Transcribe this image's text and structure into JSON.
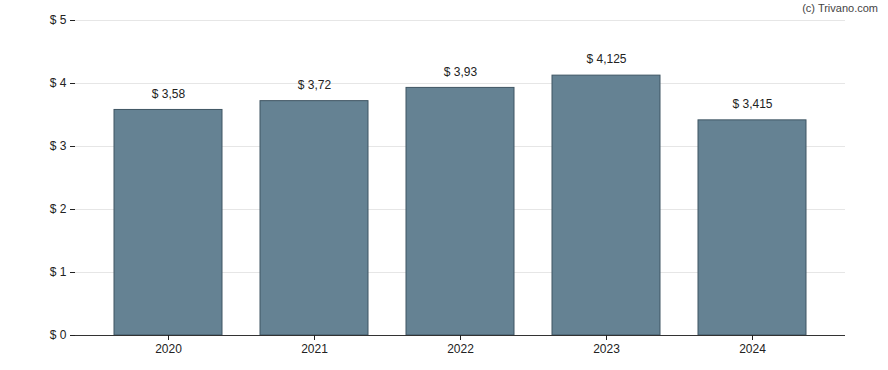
{
  "chart_data": {
    "type": "bar",
    "annotation": "(c) Trivano.com",
    "categories": [
      "2020",
      "2021",
      "2022",
      "2023",
      "2024"
    ],
    "values": [
      3.58,
      3.72,
      3.93,
      4.125,
      3.415
    ],
    "value_labels": [
      "$ 3,58",
      "$ 3,72",
      "$ 3,93",
      "$ 4,125",
      "$ 3,415"
    ],
    "color": "#658293",
    "ylim": [
      0,
      5
    ],
    "yticks": [
      {
        "value": 0,
        "label": "$ 0"
      },
      {
        "value": 1,
        "label": "$ 1"
      },
      {
        "value": 2,
        "label": "$ 2"
      },
      {
        "value": 3,
        "label": "$ 3"
      },
      {
        "value": 4,
        "label": "$ 4"
      },
      {
        "value": 5,
        "label": "$ 5"
      }
    ],
    "grid": true,
    "data_labels": true
  }
}
